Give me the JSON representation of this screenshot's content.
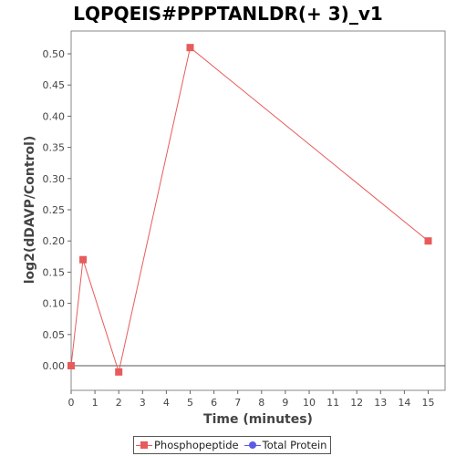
{
  "chart_data": {
    "type": "line",
    "title": "LQPQEIS#PPPTANLDR(+ 3)_v1",
    "xlabel": "Time (minutes)",
    "ylabel": "log2(dDAVP/Control)",
    "xlim": [
      0,
      15.6
    ],
    "ylim": [
      -0.04,
      0.535
    ],
    "xticks": [
      0,
      1,
      2,
      3,
      4,
      5,
      6,
      7,
      8,
      9,
      10,
      11,
      12,
      13,
      14,
      15
    ],
    "yticks": [
      0.0,
      0.05,
      0.1,
      0.15,
      0.2,
      0.25,
      0.3,
      0.35,
      0.4,
      0.45,
      0.5
    ],
    "ytick_labels": [
      "0.00",
      "0.05",
      "0.10",
      "0.15",
      "0.20",
      "0.25",
      "0.30",
      "0.35",
      "0.40",
      "0.45",
      "0.50"
    ],
    "grid": false,
    "legend_position": "bottom",
    "series": [
      {
        "name": "Phosphopeptide",
        "color": "#e85b5b",
        "marker": "square",
        "x": [
          0,
          0.5,
          2,
          5,
          15
        ],
        "y": [
          0.0,
          0.17,
          -0.01,
          0.51,
          0.2
        ]
      },
      {
        "name": "Total Protein",
        "color": "#5b5be8",
        "marker": "circle",
        "x": [],
        "y": []
      }
    ]
  }
}
